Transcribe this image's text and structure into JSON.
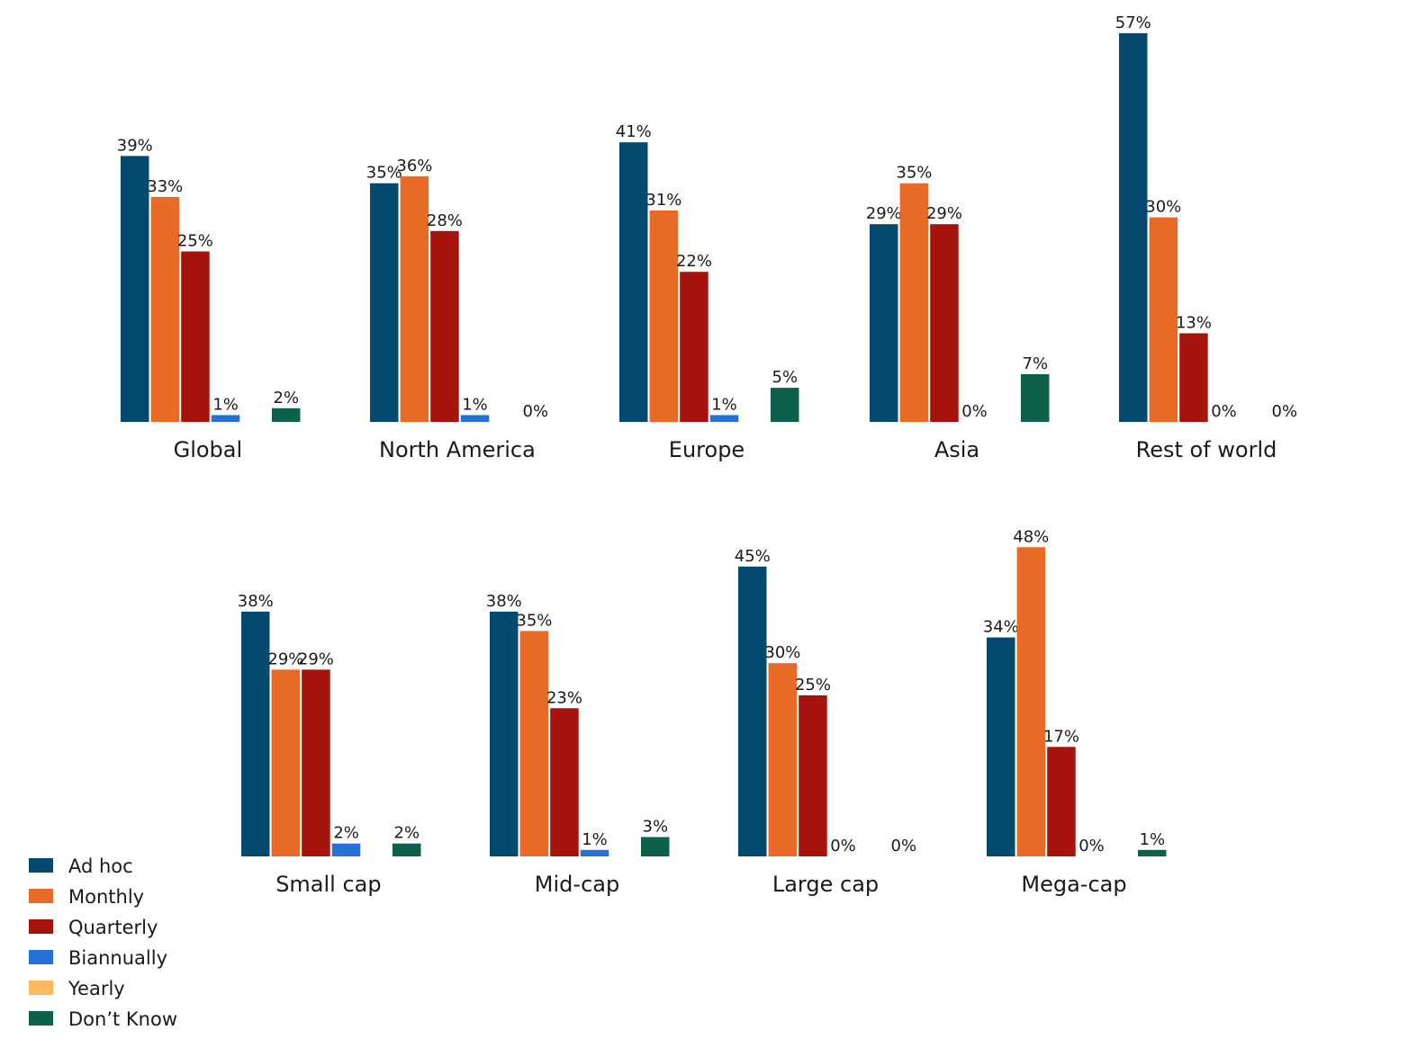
{
  "chart_data": [
    {
      "type": "bar",
      "categories": [
        "Global",
        "North America",
        "Europe",
        "Asia",
        "Rest of world"
      ],
      "series": [
        {
          "name": "Ad hoc",
          "values": [
            39,
            35,
            41,
            29,
            57
          ]
        },
        {
          "name": "Monthly",
          "values": [
            33,
            36,
            31,
            35,
            30
          ]
        },
        {
          "name": "Quarterly",
          "values": [
            25,
            28,
            22,
            29,
            13
          ]
        },
        {
          "name": "Biannually",
          "values": [
            1,
            1,
            1,
            0,
            0
          ]
        },
        {
          "name": "Yearly",
          "values": [
            0,
            0,
            0,
            0,
            0
          ]
        },
        {
          "name": "Don’t Know",
          "values": [
            2,
            0,
            5,
            7,
            0
          ]
        }
      ],
      "value_suffix": "%",
      "grid": false
    },
    {
      "type": "bar",
      "categories": [
        "Small cap",
        "Mid-cap",
        "Large cap",
        "Mega-cap"
      ],
      "series": [
        {
          "name": "Ad hoc",
          "values": [
            38,
            38,
            45,
            34
          ]
        },
        {
          "name": "Monthly",
          "values": [
            29,
            35,
            30,
            48
          ]
        },
        {
          "name": "Quarterly",
          "values": [
            29,
            23,
            25,
            17
          ]
        },
        {
          "name": "Biannually",
          "values": [
            2,
            1,
            0,
            0
          ]
        },
        {
          "name": "Yearly",
          "values": [
            0,
            0,
            0,
            0
          ]
        },
        {
          "name": "Don’t Know",
          "values": [
            2,
            3,
            0,
            1
          ]
        }
      ],
      "value_suffix": "%",
      "grid": false
    }
  ],
  "legend": {
    "placement": "bottom-left",
    "items": [
      {
        "label": "Ad hoc",
        "color": "#044a6f"
      },
      {
        "label": "Monthly",
        "color": "#e86a27"
      },
      {
        "label": "Quarterly",
        "color": "#a5130c"
      },
      {
        "label": "Biannually",
        "color": "#2671d6"
      },
      {
        "label": "Yearly",
        "color": "#fdb95b"
      },
      {
        "label": "Don’t Know",
        "color": "#0d614a"
      }
    ]
  }
}
